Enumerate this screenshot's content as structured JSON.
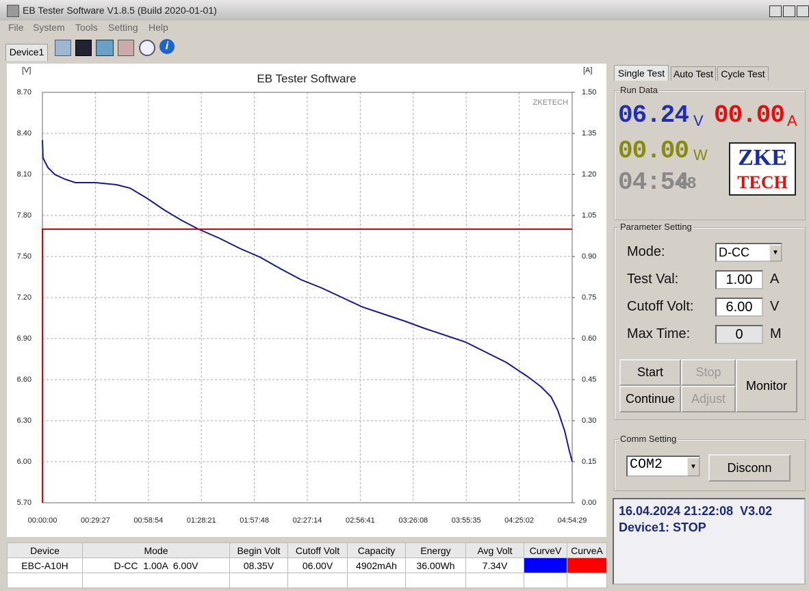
{
  "window": {
    "title": "EB Tester Software V1.8.5 (Build 2020-01-01)",
    "menu": [
      "File",
      "System",
      "Tools",
      "Setting",
      "Help"
    ],
    "device_tab": "Device1"
  },
  "chart_data": {
    "type": "line",
    "title": "EB Tester Software",
    "y_label": "[V]",
    "y2_label": "[A]",
    "watermark": "ZKETECH",
    "grid": true,
    "xlim": [
      0,
      17669
    ],
    "xticks": [
      {
        "value": 0,
        "label": "00:00:00"
      },
      {
        "value": 1767,
        "label": "00:29:27"
      },
      {
        "value": 3534,
        "label": "00:58:54"
      },
      {
        "value": 5301,
        "label": "01:28:21"
      },
      {
        "value": 7068,
        "label": "01:57:48"
      },
      {
        "value": 8834,
        "label": "02:27:14"
      },
      {
        "value": 10601,
        "label": "02:56:41"
      },
      {
        "value": 12368,
        "label": "03:26:08"
      },
      {
        "value": 14135,
        "label": "03:55:35"
      },
      {
        "value": 15902,
        "label": "04:25:02"
      },
      {
        "value": 17669,
        "label": "04:54:29"
      }
    ],
    "ylim": [
      5.7,
      8.7
    ],
    "yticks": [
      {
        "value": 8.7,
        "label": "8.70"
      },
      {
        "value": 8.4,
        "label": "8.40"
      },
      {
        "value": 8.1,
        "label": "8.10"
      },
      {
        "value": 7.8,
        "label": "7.80"
      },
      {
        "value": 7.5,
        "label": "7.50"
      },
      {
        "value": 7.2,
        "label": "7.20"
      },
      {
        "value": 6.9,
        "label": "6.90"
      },
      {
        "value": 6.6,
        "label": "6.60"
      },
      {
        "value": 6.3,
        "label": "6.30"
      },
      {
        "value": 6.0,
        "label": "6.00"
      },
      {
        "value": 5.7,
        "label": "5.70"
      }
    ],
    "y2lim": [
      0,
      1.5
    ],
    "y2ticks": [
      {
        "value": 1.5,
        "label": "1.50"
      },
      {
        "value": 1.35,
        "label": "1.35"
      },
      {
        "value": 1.2,
        "label": "1.20"
      },
      {
        "value": 1.05,
        "label": "1.05"
      },
      {
        "value": 0.9,
        "label": "0.90"
      },
      {
        "value": 0.75,
        "label": "0.75"
      },
      {
        "value": 0.6,
        "label": "0.60"
      },
      {
        "value": 0.45,
        "label": "0.45"
      },
      {
        "value": 0.3,
        "label": "0.30"
      },
      {
        "value": 0.15,
        "label": "0.15"
      },
      {
        "value": 0,
        "label": "0.00"
      }
    ],
    "series": [
      {
        "color": "#1a1a8c",
        "axis": "y",
        "x": [
          0,
          20,
          183,
          411,
          753,
          1096,
          1781,
          2466,
          2922,
          3493,
          4064,
          4635,
          5205,
          5890,
          6575,
          7260,
          7945,
          8630,
          9315,
          10000,
          10684,
          11369,
          12054,
          12739,
          13424,
          14109,
          14794,
          15479,
          16164,
          16620,
          16963,
          17191,
          17419,
          17579,
          17669
        ],
        "values": [
          8.35,
          8.22,
          8.15,
          8.1,
          8.065,
          8.04,
          8.04,
          8.025,
          8.0,
          7.925,
          7.84,
          7.765,
          7.7,
          7.635,
          7.56,
          7.495,
          7.41,
          7.33,
          7.27,
          7.2,
          7.13,
          7.08,
          7.03,
          6.975,
          6.925,
          6.875,
          6.8,
          6.725,
          6.625,
          6.55,
          6.475,
          6.375,
          6.225,
          6.075,
          6.0
        ]
      },
      {
        "color": "#e00000",
        "axis": "y2",
        "x": [
          0,
          0,
          17669
        ],
        "values": [
          0,
          1.0,
          1.0
        ]
      }
    ]
  },
  "side_panel": {
    "tabs": [
      "Single Test",
      "Auto Test",
      "Cycle Test"
    ],
    "run_data": {
      "title": "Run Data",
      "voltage": "06.24",
      "voltage_unit": "V",
      "current": "00.00",
      "current_unit": "A",
      "power": "00.00",
      "power_unit": "W",
      "time": "04:54",
      "time_seconds": "08",
      "logo_top": "ZKE",
      "logo_bottom": "TECH"
    },
    "parameters": {
      "title": "Parameter Setting",
      "mode_label": "Mode:",
      "mode": "D-CC",
      "test_val_label": "Test Val:",
      "test_val": "1.00",
      "test_val_unit": "A",
      "cutoff_label": "Cutoff Volt:",
      "cutoff": "6.00",
      "cutoff_unit": "V",
      "max_time_label": "Max Time:",
      "max_time": "0",
      "max_time_unit": "M"
    },
    "buttons": [
      "Start",
      "Stop",
      "Continue",
      "Adjust",
      "Monitor"
    ],
    "comm": {
      "title": "Comm Setting",
      "port": "COM2",
      "button": "Disconn"
    },
    "status": [
      "16.04.2024 21:22:08  V3.02",
      "Device1: STOP"
    ]
  },
  "table": {
    "headers": [
      "Device",
      "Mode",
      "Begin Volt",
      "Cutoff Volt",
      "Capacity",
      "Energy",
      "Avg Volt",
      "CurveV",
      "CurveA"
    ],
    "rows": [
      [
        "EBC-A10H",
        "D-CC  1.00A  6.00V",
        "08.35V",
        "06.00V",
        "4902mAh",
        "36.00Wh",
        "7.34V"
      ]
    ],
    "curve_colors": [
      "#0000ff",
      "#ff0000"
    ]
  }
}
